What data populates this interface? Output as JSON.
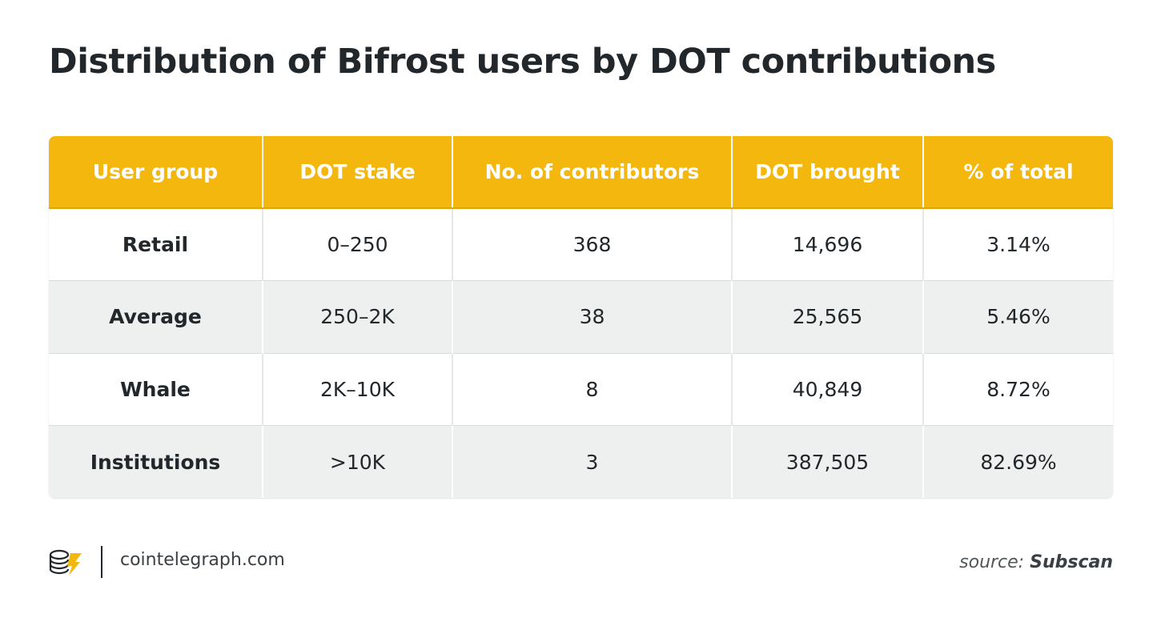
{
  "title": "Distribution of Bifrost users by DOT contributions",
  "chart_data": {
    "type": "table",
    "title": "Distribution of Bifrost users by DOT contributions",
    "columns": [
      "User group",
      "DOT stake",
      "No. of contributors",
      "DOT brought",
      "% of total"
    ],
    "rows": [
      [
        "Retail",
        "0–250",
        "368",
        "14,696",
        "3.14%"
      ],
      [
        "Average",
        "250–2K",
        "38",
        "25,565",
        "5.46%"
      ],
      [
        "Whale",
        "2K–10K",
        "8",
        "40,849",
        "8.72%"
      ],
      [
        "Institutions",
        ">10K",
        "3",
        "387,505",
        "82.69%"
      ]
    ]
  },
  "footer": {
    "logo_icon": "cointelegraph-logo-icon",
    "site": "cointelegraph.com",
    "source_label": "source:",
    "source_name": "Subscan"
  },
  "colors": {
    "header_bg": "#f4b70d",
    "header_text": "#ffffff",
    "row_alt_bg": "#eef0f0",
    "text": "#22272b"
  }
}
